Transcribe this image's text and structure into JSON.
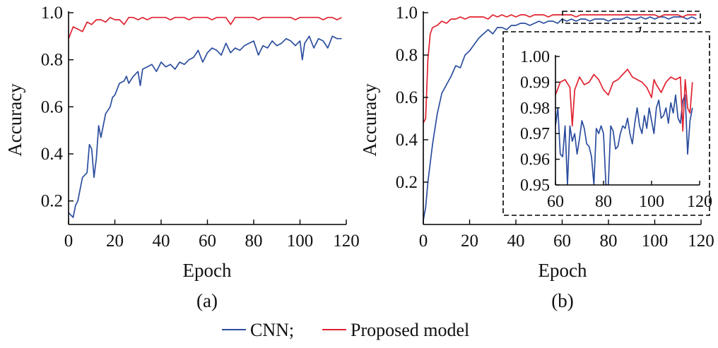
{
  "colors": {
    "cnn": "#2b4d9e",
    "proposed": "#e0212f",
    "axis": "#000000"
  },
  "legend": {
    "entries": [
      {
        "label": "CNN;",
        "color": "#2b4d9e"
      },
      {
        "label": "Proposed model",
        "color": "#e0212f"
      }
    ]
  },
  "chart_data": [
    {
      "type": "line",
      "panel_label": "(a)",
      "xlabel": "Epoch",
      "ylabel": "Accuracy",
      "xlim": [
        0,
        120
      ],
      "ylim": [
        0.1,
        1.0
      ],
      "xticks": [
        0,
        20,
        40,
        60,
        80,
        100,
        120
      ],
      "yticks": [
        0.2,
        0.4,
        0.6,
        0.8,
        1.0
      ],
      "ytick_labels": [
        "0.2",
        "0.4",
        "0.6",
        "0.8",
        "1.0"
      ],
      "series": [
        {
          "name": "CNN",
          "color": "#2b4d9e",
          "x": [
            0,
            2,
            3,
            4,
            6,
            8,
            9,
            10,
            11,
            12,
            13,
            14,
            16,
            18,
            19,
            20,
            22,
            24,
            25,
            26,
            28,
            30,
            31,
            32,
            34,
            36,
            38,
            40,
            42,
            44,
            46,
            48,
            50,
            52,
            54,
            56,
            58,
            60,
            62,
            64,
            66,
            68,
            70,
            72,
            74,
            76,
            78,
            80,
            82,
            84,
            86,
            88,
            90,
            92,
            94,
            96,
            98,
            100,
            101,
            102,
            104,
            106,
            108,
            110,
            112,
            114,
            116,
            118
          ],
          "y": [
            0.15,
            0.13,
            0.18,
            0.2,
            0.3,
            0.32,
            0.44,
            0.42,
            0.3,
            0.38,
            0.52,
            0.47,
            0.57,
            0.6,
            0.64,
            0.65,
            0.7,
            0.71,
            0.73,
            0.7,
            0.73,
            0.75,
            0.69,
            0.76,
            0.77,
            0.78,
            0.75,
            0.79,
            0.77,
            0.78,
            0.76,
            0.79,
            0.78,
            0.8,
            0.81,
            0.84,
            0.79,
            0.83,
            0.85,
            0.84,
            0.82,
            0.87,
            0.83,
            0.85,
            0.84,
            0.86,
            0.87,
            0.88,
            0.82,
            0.86,
            0.85,
            0.88,
            0.86,
            0.87,
            0.89,
            0.88,
            0.86,
            0.88,
            0.8,
            0.87,
            0.9,
            0.85,
            0.89,
            0.88,
            0.85,
            0.9,
            0.89,
            0.89
          ]
        },
        {
          "name": "Proposed model",
          "color": "#e0212f",
          "x": [
            0,
            2,
            4,
            6,
            8,
            10,
            12,
            14,
            16,
            18,
            20,
            22,
            24,
            26,
            28,
            30,
            32,
            34,
            36,
            38,
            40,
            42,
            44,
            46,
            48,
            50,
            52,
            54,
            56,
            58,
            60,
            62,
            64,
            66,
            68,
            70,
            72,
            74,
            76,
            78,
            80,
            82,
            84,
            86,
            88,
            90,
            92,
            94,
            96,
            98,
            100,
            102,
            104,
            106,
            108,
            110,
            112,
            114,
            116,
            118
          ],
          "y": [
            0.89,
            0.94,
            0.93,
            0.92,
            0.96,
            0.95,
            0.97,
            0.97,
            0.96,
            0.98,
            0.97,
            0.97,
            0.95,
            0.98,
            0.98,
            0.97,
            0.98,
            0.97,
            0.98,
            0.98,
            0.98,
            0.98,
            0.97,
            0.98,
            0.98,
            0.98,
            0.97,
            0.98,
            0.98,
            0.98,
            0.98,
            0.97,
            0.98,
            0.98,
            0.98,
            0.95,
            0.98,
            0.98,
            0.98,
            0.98,
            0.98,
            0.97,
            0.98,
            0.98,
            0.98,
            0.98,
            0.98,
            0.98,
            0.98,
            0.97,
            0.98,
            0.98,
            0.98,
            0.98,
            0.98,
            0.97,
            0.98,
            0.98,
            0.97,
            0.98
          ]
        }
      ]
    },
    {
      "type": "line",
      "panel_label": "(b)",
      "xlabel": "Epoch",
      "ylabel": "Accuracy",
      "xlim": [
        0,
        120
      ],
      "ylim": [
        0.0,
        1.0
      ],
      "xticks": [
        0,
        20,
        40,
        60,
        80,
        100,
        120
      ],
      "yticks": [
        0.2,
        0.4,
        0.6,
        0.8,
        1.0
      ],
      "ytick_labels": [
        "0.2",
        "0.4",
        "0.6",
        "0.8",
        "1.0"
      ],
      "annotation": "1",
      "series": [
        {
          "name": "CNN",
          "color": "#2b4d9e",
          "x": [
            0,
            1,
            2,
            4,
            6,
            8,
            10,
            12,
            14,
            16,
            18,
            20,
            22,
            24,
            26,
            28,
            30,
            32,
            34,
            36,
            38,
            40,
            42,
            44,
            46,
            48,
            50,
            52,
            54,
            56,
            58,
            60,
            62,
            64,
            66,
            68,
            70,
            72,
            74,
            76,
            78,
            80,
            82,
            84,
            86,
            88,
            90,
            92,
            94,
            96,
            98,
            100,
            102,
            104,
            106,
            108,
            110,
            112,
            114,
            116,
            118
          ],
          "y": [
            0.02,
            0.08,
            0.2,
            0.38,
            0.52,
            0.62,
            0.66,
            0.7,
            0.75,
            0.74,
            0.8,
            0.82,
            0.85,
            0.88,
            0.9,
            0.92,
            0.9,
            0.93,
            0.93,
            0.92,
            0.94,
            0.94,
            0.95,
            0.95,
            0.94,
            0.95,
            0.96,
            0.95,
            0.96,
            0.96,
            0.95,
            0.97,
            0.96,
            0.97,
            0.96,
            0.97,
            0.97,
            0.96,
            0.97,
            0.97,
            0.97,
            0.96,
            0.97,
            0.97,
            0.97,
            0.98,
            0.97,
            0.97,
            0.98,
            0.97,
            0.98,
            0.97,
            0.98,
            0.98,
            0.97,
            0.98,
            0.98,
            0.98,
            0.97,
            0.98,
            0.97
          ]
        },
        {
          "name": "Proposed model",
          "color": "#e0212f",
          "x": [
            0,
            1,
            2,
            3,
            4,
            6,
            8,
            10,
            12,
            14,
            16,
            18,
            20,
            22,
            24,
            26,
            28,
            30,
            32,
            34,
            36,
            38,
            40,
            42,
            44,
            46,
            48,
            50,
            52,
            54,
            56,
            58,
            60,
            62,
            64,
            66,
            68,
            70,
            72,
            74,
            76,
            78,
            80,
            82,
            84,
            86,
            88,
            90,
            92,
            94,
            96,
            98,
            100,
            102,
            104,
            106,
            108,
            110,
            112,
            114,
            116,
            118
          ],
          "y": [
            0.48,
            0.5,
            0.78,
            0.9,
            0.93,
            0.94,
            0.96,
            0.95,
            0.97,
            0.97,
            0.98,
            0.97,
            0.98,
            0.98,
            0.98,
            0.98,
            0.97,
            0.99,
            0.98,
            0.99,
            0.98,
            0.99,
            0.98,
            0.99,
            0.99,
            0.98,
            0.99,
            0.99,
            0.99,
            0.98,
            0.99,
            0.99,
            0.99,
            0.99,
            0.99,
            0.98,
            0.99,
            0.99,
            0.99,
            0.99,
            0.99,
            0.99,
            0.99,
            0.99,
            0.99,
            0.99,
            0.99,
            0.99,
            0.99,
            0.99,
            0.99,
            0.99,
            0.99,
            0.98,
            0.99,
            0.99,
            0.99,
            0.99,
            0.98,
            0.99,
            0.99,
            0.99
          ]
        }
      ]
    },
    {
      "type": "line",
      "role": "inset of panel (b)",
      "xlim": [
        60,
        120
      ],
      "ylim": [
        0.95,
        1.0
      ],
      "xticks": [
        60,
        80,
        100,
        120
      ],
      "yticks": [
        0.95,
        0.96,
        0.97,
        0.98,
        0.99,
        1.0
      ],
      "ytick_labels": [
        "0.95",
        "0.96",
        "0.97",
        "0.98",
        "0.99",
        "1.00"
      ],
      "series": [
        {
          "name": "CNN",
          "color": "#2b4d9e",
          "x": [
            60,
            61,
            62,
            63,
            64,
            65,
            66,
            67,
            68,
            69,
            70,
            71,
            72,
            73,
            74,
            75,
            76,
            77,
            78,
            79,
            80,
            81,
            82,
            83,
            84,
            85,
            86,
            87,
            88,
            89,
            90,
            91,
            92,
            93,
            94,
            95,
            96,
            97,
            98,
            99,
            100,
            101,
            102,
            103,
            104,
            105,
            106,
            107,
            108,
            109,
            110,
            111,
            112,
            113,
            114,
            115,
            116,
            117
          ],
          "y": [
            0.973,
            0.98,
            0.962,
            0.961,
            0.973,
            0.95,
            0.973,
            0.967,
            0.97,
            0.962,
            0.968,
            0.975,
            0.972,
            0.966,
            0.965,
            0.961,
            0.95,
            0.972,
            0.97,
            0.973,
            0.97,
            0.95,
            0.95,
            0.973,
            0.971,
            0.964,
            0.965,
            0.97,
            0.973,
            0.972,
            0.976,
            0.97,
            0.966,
            0.974,
            0.98,
            0.973,
            0.97,
            0.977,
            0.972,
            0.98,
            0.975,
            0.97,
            0.98,
            0.983,
            0.976,
            0.977,
            0.98,
            0.974,
            0.982,
            0.978,
            0.985,
            0.976,
            0.974,
            0.983,
            0.985,
            0.962,
            0.975,
            0.98
          ]
        },
        {
          "name": "Proposed model",
          "color": "#e0212f",
          "x": [
            60,
            62,
            64,
            66,
            67,
            68,
            70,
            72,
            74,
            76,
            78,
            80,
            82,
            84,
            86,
            88,
            90,
            92,
            94,
            96,
            98,
            100,
            101,
            102,
            104,
            106,
            108,
            110,
            112,
            113,
            114,
            115,
            116,
            117
          ],
          "y": [
            0.985,
            0.99,
            0.991,
            0.988,
            0.973,
            0.987,
            0.992,
            0.989,
            0.99,
            0.993,
            0.991,
            0.987,
            0.985,
            0.99,
            0.991,
            0.993,
            0.995,
            0.992,
            0.991,
            0.99,
            0.988,
            0.984,
            0.991,
            0.989,
            0.986,
            0.99,
            0.992,
            0.991,
            0.992,
            0.971,
            0.991,
            0.98,
            0.978,
            0.99
          ]
        }
      ]
    }
  ]
}
